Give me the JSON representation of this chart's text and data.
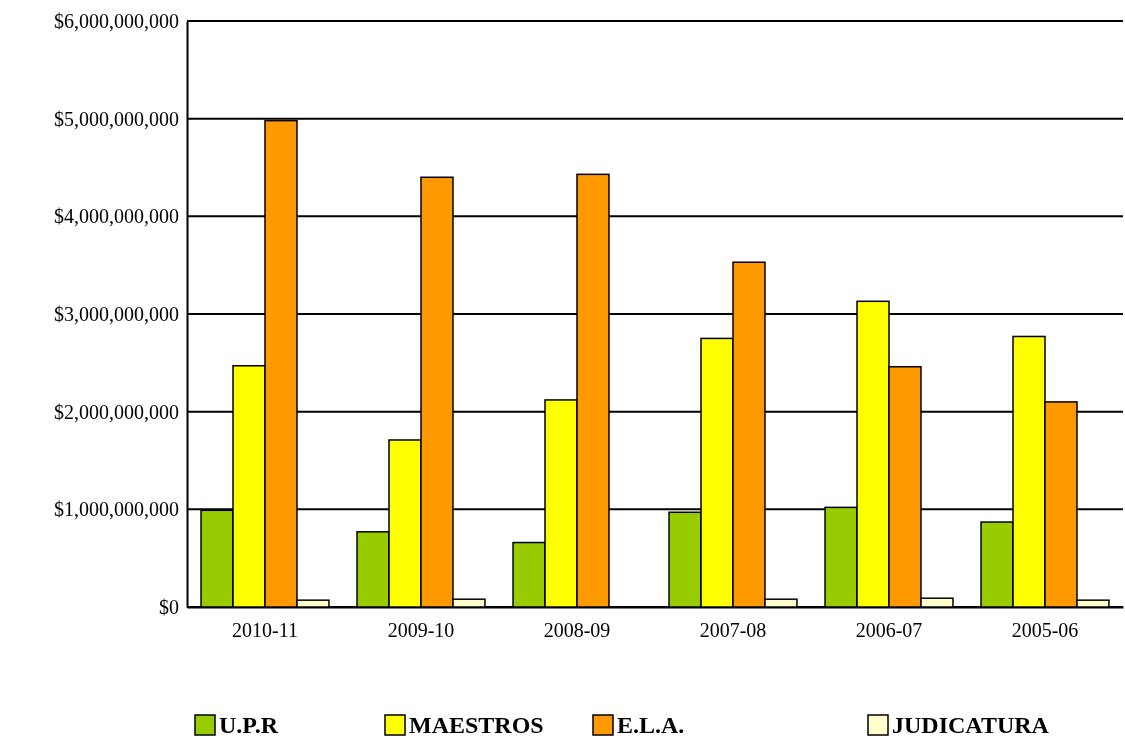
{
  "chart_data": {
    "type": "bar",
    "categories": [
      "2010-11",
      "2009-10",
      "2008-09",
      "2007-08",
      "2006-07",
      "2005-06"
    ],
    "series": [
      {
        "name": "U.P.R",
        "color": "#99cc00",
        "values": [
          990000000,
          770000000,
          660000000,
          970000000,
          1020000000,
          870000000
        ]
      },
      {
        "name": "MAESTROS",
        "color": "#ffff00",
        "values": [
          2470000000,
          1710000000,
          2120000000,
          2750000000,
          3130000000,
          2770000000
        ]
      },
      {
        "name": "E.L.A.",
        "color": "#ff9900",
        "values": [
          4980000000,
          4400000000,
          4430000000,
          3530000000,
          2460000000,
          2100000000
        ]
      },
      {
        "name": "JUDICATURA",
        "color": "#ffffcc",
        "values": [
          70000000,
          80000000,
          null,
          80000000,
          90000000,
          70000000
        ]
      }
    ],
    "ylim": [
      0,
      6000000000
    ],
    "yticks": [
      {
        "value": 0,
        "label": "$0"
      },
      {
        "value": 1000000000,
        "label": "$1,000,000,000"
      },
      {
        "value": 2000000000,
        "label": "$2,000,000,000"
      },
      {
        "value": 3000000000,
        "label": "$3,000,000,000"
      },
      {
        "value": 4000000000,
        "label": "$4,000,000,000"
      },
      {
        "value": 5000000000,
        "label": "$5,000,000,000"
      },
      {
        "value": 6000000000,
        "label": "$6,000,000,000"
      }
    ],
    "grid": "y",
    "legend": "bottom"
  }
}
